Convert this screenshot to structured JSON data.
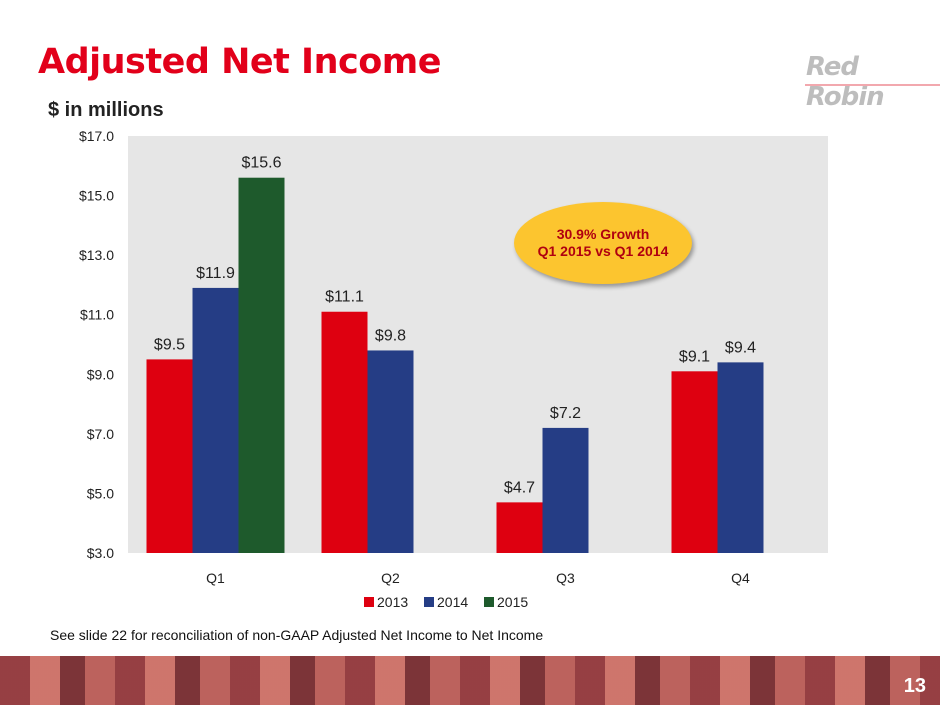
{
  "slide": {
    "title": "Adjusted Net Income",
    "logo": "Red Robin",
    "subtitle": "$ in millions",
    "note": "See slide 22 for reconciliation of non-GAAP Adjusted Net Income to Net Income",
    "page_number": "13"
  },
  "callout": {
    "line1": "30.9% Growth",
    "line2": "Q1 2015 vs Q1 2014"
  },
  "chart_data": {
    "type": "bar",
    "title": "Adjusted Net Income",
    "ylabel": "$ in millions",
    "categories": [
      "Q1",
      "Q2",
      "Q3",
      "Q4"
    ],
    "series": [
      {
        "name": "2013",
        "color": "#de0010",
        "values": [
          9.5,
          11.1,
          4.7,
          9.1
        ],
        "labels": [
          "$9.5",
          "$11.1",
          "$4.7",
          "$9.1"
        ]
      },
      {
        "name": "2014",
        "color": "#253d85",
        "values": [
          11.9,
          9.8,
          7.2,
          9.4
        ],
        "labels": [
          "$11.9",
          "$9.8",
          "$7.2",
          "$9.4"
        ]
      },
      {
        "name": "2015",
        "color": "#1e5a2c",
        "values": [
          15.6,
          null,
          null,
          null
        ],
        "labels": [
          "$15.6",
          null,
          null,
          null
        ]
      }
    ],
    "ylim": [
      3,
      17
    ],
    "yticks": [
      3,
      5,
      7,
      9,
      11,
      13,
      15,
      17
    ],
    "ytick_labels": [
      "$3.0",
      "$5.0",
      "$7.0",
      "$9.0",
      "$11.0",
      "$13.0",
      "$15.0",
      "$17.0"
    ],
    "legend_position": "bottom",
    "plot_background": "#e6e6e6"
  }
}
